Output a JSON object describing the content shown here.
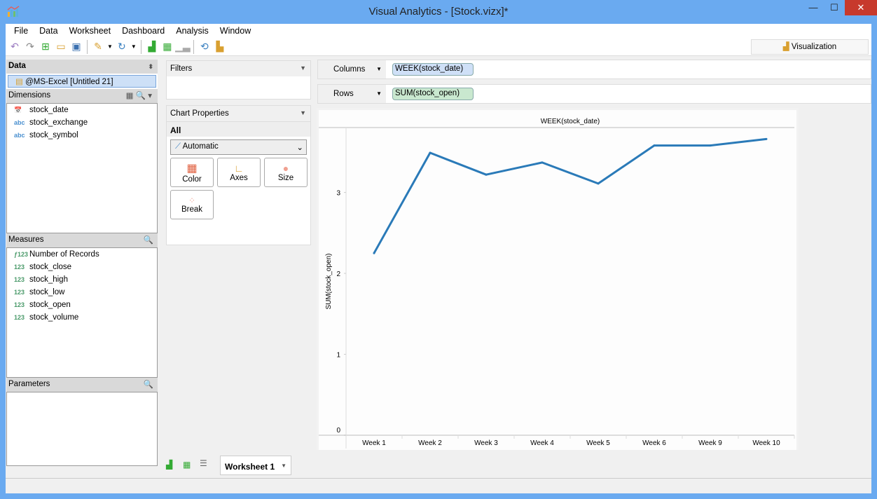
{
  "window": {
    "title": "Visual Analytics - [Stock.vizx]*",
    "minimize": "—",
    "maximize": "☐",
    "close": "✕"
  },
  "menu": [
    "File",
    "Data",
    "Worksheet",
    "Dashboard",
    "Analysis",
    "Window"
  ],
  "toolbar": {
    "icons": [
      "undo-icon",
      "redo-icon",
      "new-icon",
      "open-icon",
      "save-icon",
      "connect-icon",
      "refresh-icon",
      "new-worksheet-icon",
      "new-dashboard-icon",
      "chart-icon",
      "swap-icon",
      "presentation-icon"
    ]
  },
  "visualization_tab": "Visualization",
  "data_panel": {
    "header": "Data",
    "source": "@MS-Excel [Untitled 21]"
  },
  "dimensions": {
    "header": "Dimensions",
    "items": [
      {
        "type": "date",
        "label": "stock_date"
      },
      {
        "type": "abc",
        "label": "stock_exchange"
      },
      {
        "type": "abc",
        "label": "stock_symbol"
      }
    ]
  },
  "measures": {
    "header": "Measures",
    "items": [
      {
        "type": "fx123",
        "label": "Number of Records"
      },
      {
        "type": "123",
        "label": "stock_close"
      },
      {
        "type": "123",
        "label": "stock_high"
      },
      {
        "type": "123",
        "label": "stock_low"
      },
      {
        "type": "123",
        "label": "stock_open"
      },
      {
        "type": "123",
        "label": "stock_volume"
      }
    ]
  },
  "parameters": {
    "header": "Parameters"
  },
  "filters": {
    "header": "Filters"
  },
  "chart_properties": {
    "header": "Chart Properties",
    "tab": "All",
    "chart_type": "Automatic",
    "buttons": [
      "Color",
      "Axes",
      "Size",
      "Break"
    ]
  },
  "shelves": {
    "columns_label": "Columns",
    "columns_pill": "WEEK(stock_date)",
    "rows_label": "Rows",
    "rows_pill": "SUM(stock_open)",
    "colors": {
      "columns_pill": "#cfe0f7",
      "rows_pill": "#c9e8cf"
    }
  },
  "worksheet_tab": "Worksheet 1",
  "chart_data": {
    "type": "line",
    "title": "WEEK(stock_date)",
    "xlabel": "",
    "ylabel": "SUM(stock_open)",
    "categories": [
      "Week 1",
      "Week 2",
      "Week 3",
      "Week 4",
      "Week 5",
      "Week 6",
      "Week 9",
      "Week 10"
    ],
    "values": [
      2.25,
      3.49,
      3.22,
      3.37,
      3.11,
      3.58,
      3.58,
      3.66
    ],
    "yticks": [
      0,
      1,
      2,
      3
    ],
    "ylim": [
      0,
      3.75
    ],
    "grid": false,
    "color": "#2a7ab8"
  }
}
